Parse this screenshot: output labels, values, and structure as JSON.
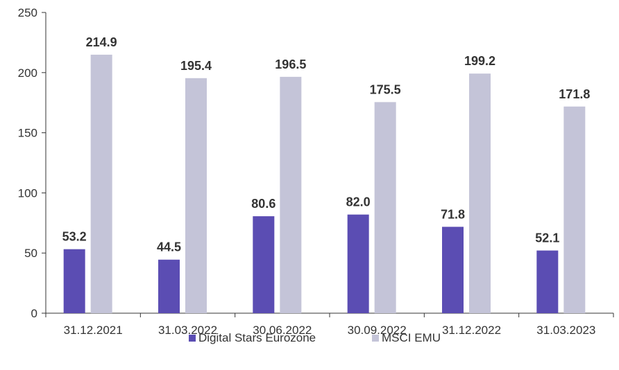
{
  "chart_data": {
    "type": "bar",
    "categories": [
      "31.12.2021",
      "31.03.2022",
      "30.06.2022",
      "30.09.2022",
      "31.12.2022",
      "31.03.2023"
    ],
    "series": [
      {
        "name": "Digital Stars Eurozone",
        "values": [
          53.2,
          44.5,
          80.6,
          82.0,
          71.8,
          52.1
        ],
        "color": "#5b4db3",
        "labels": [
          "53.2",
          "44.5",
          "80.6",
          "82.0",
          "71.8",
          "52.1"
        ]
      },
      {
        "name": "MSCI EMU",
        "values": [
          214.9,
          195.4,
          196.5,
          175.5,
          199.2,
          171.8
        ],
        "color": "#c4c4d8",
        "labels": [
          "214.9",
          "195.4",
          "196.5",
          "175.5",
          "199.2",
          "171.8"
        ]
      }
    ],
    "yticks": [
      "0",
      "50",
      "100",
      "150",
      "200",
      "250"
    ],
    "ylim": [
      0,
      250
    ],
    "legend": "bottom",
    "grid": false
  }
}
